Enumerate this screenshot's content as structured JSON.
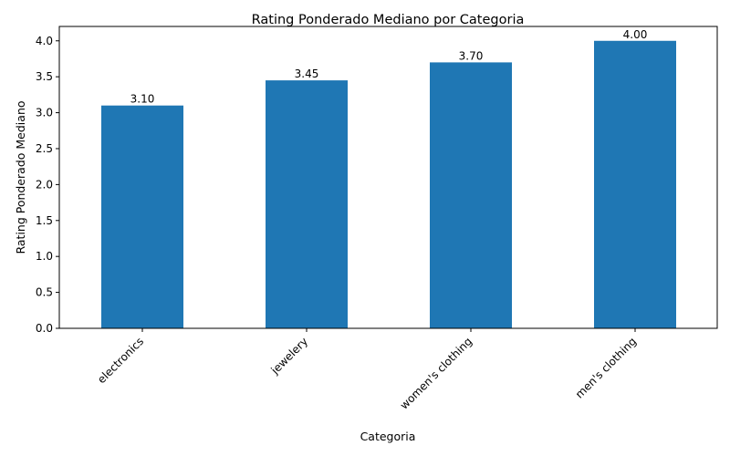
{
  "chart_data": {
    "type": "bar",
    "title": "Rating Ponderado Mediano por Categoria",
    "xlabel": "Categoria",
    "ylabel": "Rating Ponderado Mediano",
    "categories": [
      "electronics",
      "jewelery",
      "women's clothing",
      "men's clothing"
    ],
    "values": [
      3.1,
      3.45,
      3.7,
      4.0
    ],
    "value_labels": [
      "3.10",
      "3.45",
      "3.70",
      "4.00"
    ],
    "ylim": [
      0,
      4.2
    ],
    "yticks": [
      0.0,
      0.5,
      1.0,
      1.5,
      2.0,
      2.5,
      3.0,
      3.5,
      4.0
    ],
    "ytick_labels": [
      "0.0",
      "0.5",
      "1.0",
      "1.5",
      "2.0",
      "2.5",
      "3.0",
      "3.5",
      "4.0"
    ],
    "bar_color": "#1f77b4",
    "grid": false,
    "legend": "none"
  }
}
